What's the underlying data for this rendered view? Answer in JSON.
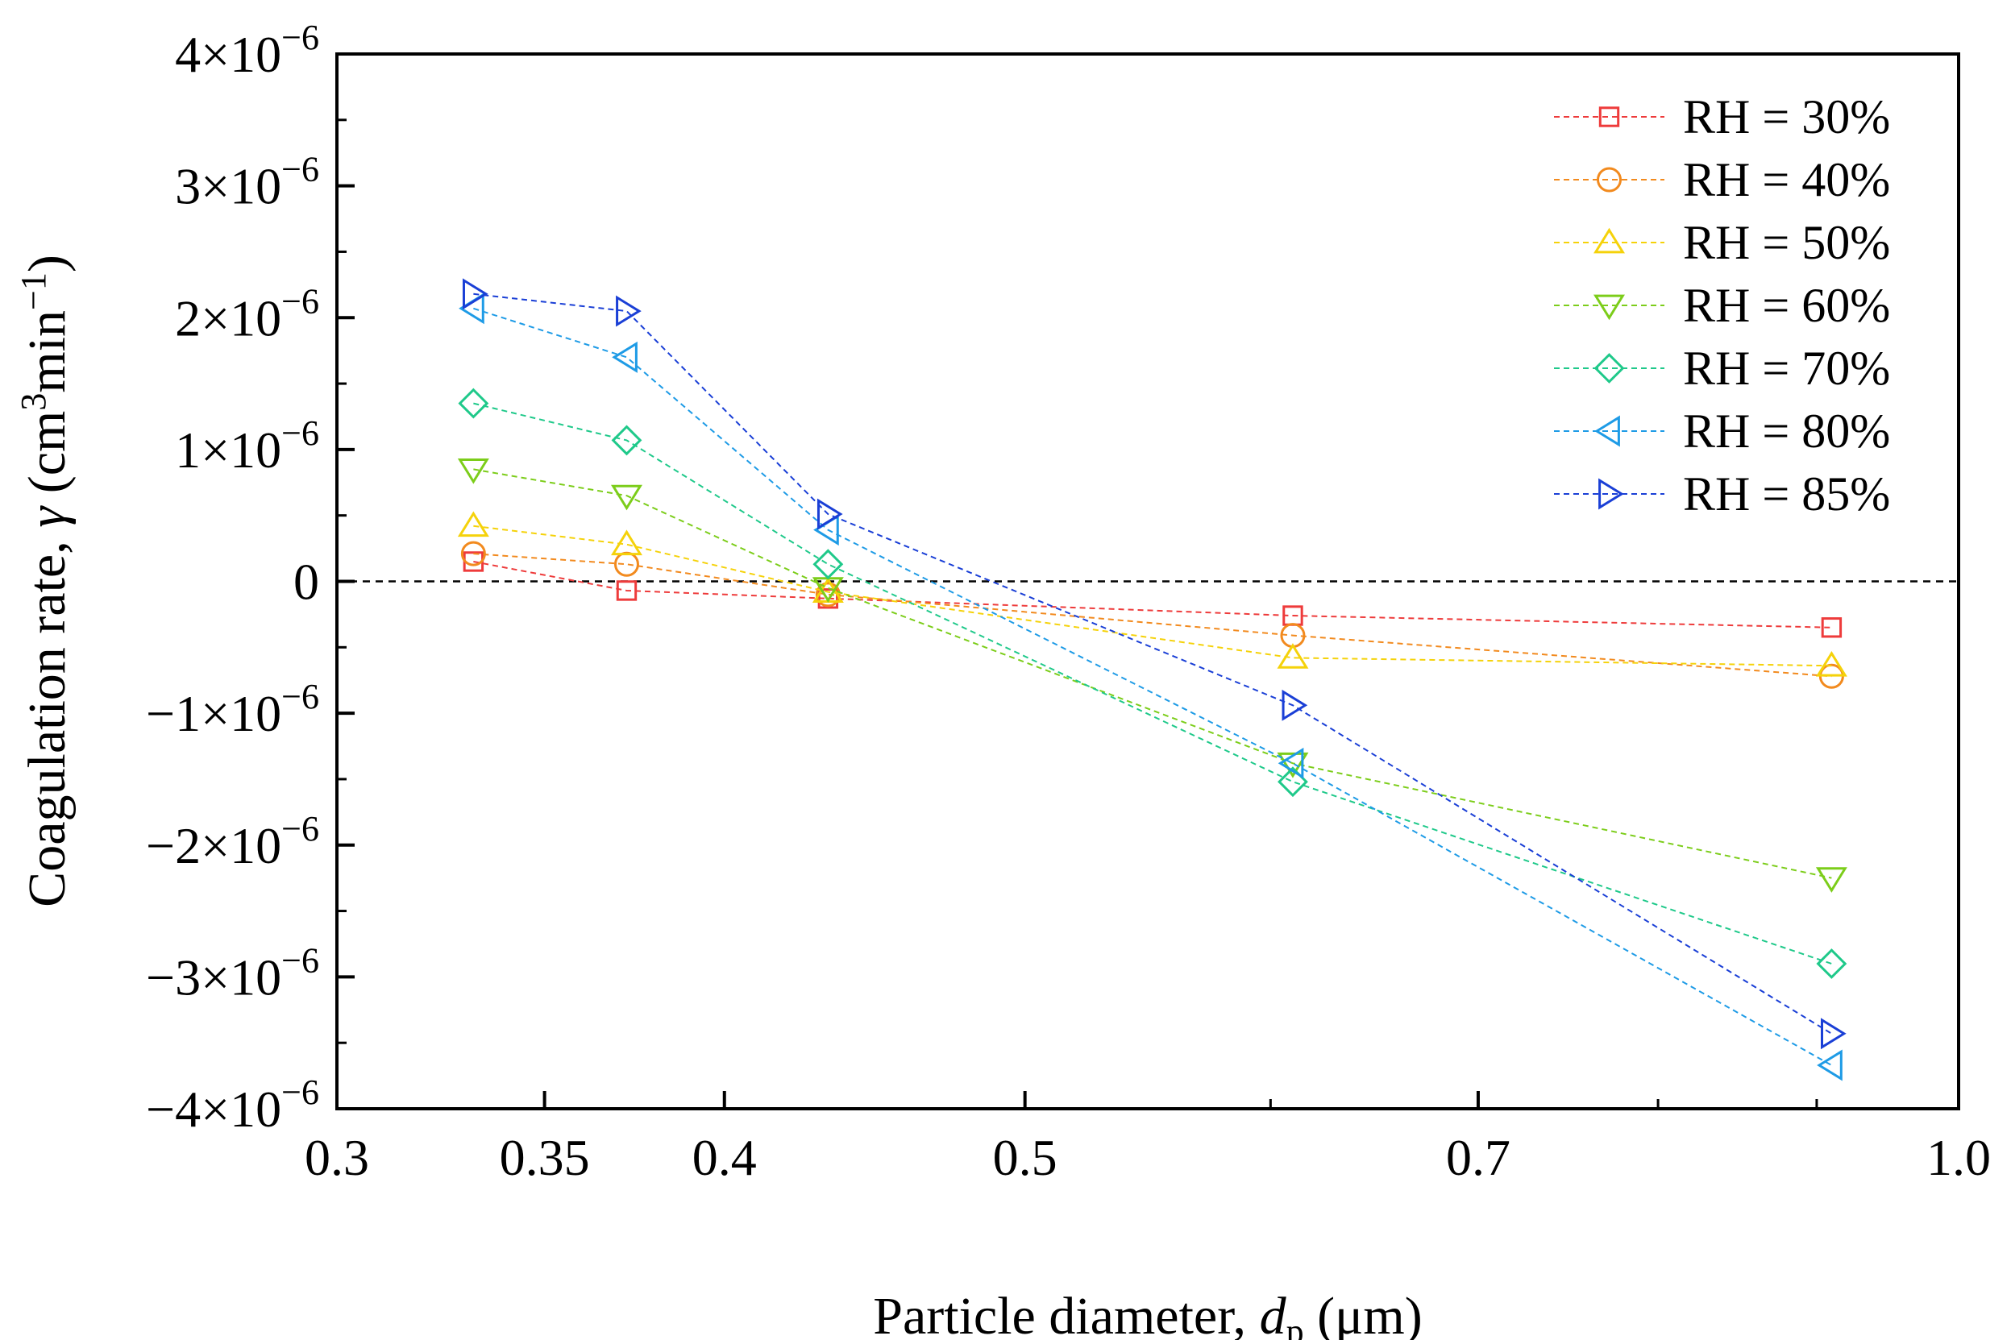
{
  "chart_data": {
    "type": "line",
    "title": "",
    "xlabel": {
      "prefix": "Particle diameter, ",
      "var": "d",
      "sub": "p",
      "suffix": " (μm)"
    },
    "ylabel": {
      "prefix": "Coagulation rate, ",
      "var": "γ",
      "mid": " (cm",
      "sup1": "3",
      "mid2": "min",
      "sup2": "−1",
      "suffix": ")"
    },
    "xscale": "log",
    "xlim": [
      0.3,
      1.0
    ],
    "ylim": [
      -4e-06,
      4e-06
    ],
    "x_ticks": [
      {
        "value": 0.3,
        "label": "0.3"
      },
      {
        "value": 0.35,
        "label": "0.35"
      },
      {
        "value": 0.4,
        "label": "0.4"
      },
      {
        "value": 0.5,
        "label": "0.5"
      },
      {
        "value": 0.7,
        "label": "0.7"
      },
      {
        "value": 1.0,
        "label": "1.0"
      }
    ],
    "y_ticks": [
      {
        "value": 4e-06,
        "label": "4×10",
        "exp": "−6"
      },
      {
        "value": 3e-06,
        "label": "3×10",
        "exp": "−6"
      },
      {
        "value": 2e-06,
        "label": "2×10",
        "exp": "−6"
      },
      {
        "value": 1e-06,
        "label": "1×10",
        "exp": "−6"
      },
      {
        "value": 0,
        "label": "0",
        "exp": ""
      },
      {
        "value": -1e-06,
        "label": "−1×10",
        "exp": "−6"
      },
      {
        "value": -2e-06,
        "label": "−2×10",
        "exp": "−6"
      },
      {
        "value": -3e-06,
        "label": "−3×10",
        "exp": "−6"
      },
      {
        "value": -4e-06,
        "label": "−4×10",
        "exp": "−6"
      }
    ],
    "zero_reference_line": true,
    "legend_position": "top-right",
    "x": [
      0.332,
      0.372,
      0.432,
      0.61,
      0.91
    ],
    "series": [
      {
        "name": "RH = 30%",
        "marker": "square",
        "color": "#ee3b3b",
        "values": [
          1.5e-07,
          -7e-08,
          -1.3e-07,
          -2.6e-07,
          -3.5e-07
        ]
      },
      {
        "name": "RH = 40%",
        "marker": "circle",
        "color": "#f28a1e",
        "values": [
          2.1e-07,
          1.3e-07,
          -1e-07,
          -4.1e-07,
          -7.2e-07
        ]
      },
      {
        "name": "RH = 50%",
        "marker": "triangle-up",
        "color": "#f5d20a",
        "values": [
          4.2e-07,
          2.8e-07,
          -8e-08,
          -5.8e-07,
          -6.4e-07
        ]
      },
      {
        "name": "RH = 60%",
        "marker": "triangle-down",
        "color": "#7ccd1a",
        "values": [
          8.5e-07,
          6.5e-07,
          -5e-08,
          -1.38e-06,
          -2.25e-06
        ]
      },
      {
        "name": "RH = 70%",
        "marker": "diamond",
        "color": "#1fc98a",
        "values": [
          1.35e-06,
          1.07e-06,
          1.3e-07,
          -1.52e-06,
          -2.9e-06
        ]
      },
      {
        "name": "RH = 80%",
        "marker": "triangle-left",
        "color": "#1e9be6",
        "values": [
          2.07e-06,
          1.7e-06,
          3.9e-07,
          -1.38e-06,
          -3.67e-06
        ]
      },
      {
        "name": "RH = 85%",
        "marker": "triangle-right",
        "color": "#1a3fd6",
        "values": [
          2.18e-06,
          2.05e-06,
          5.1e-07,
          -9.4e-07,
          -3.43e-06
        ]
      }
    ]
  }
}
